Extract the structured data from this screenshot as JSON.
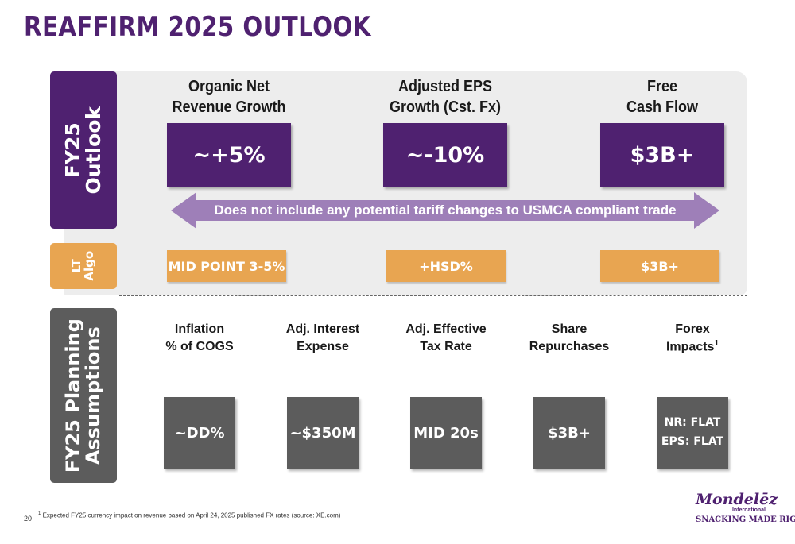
{
  "title": "REAFFIRM 2025 OUTLOOK",
  "sections": {
    "outlook_tab": "FY25\nOutlook",
    "lt_algo_tab": "LT\nAlgo",
    "planning_tab": "FY25 Planning\nAssumptions"
  },
  "outlook": {
    "metrics": [
      {
        "label": "Organic Net\nRevenue Growth",
        "value": "~+5%"
      },
      {
        "label": "Adjusted EPS\nGrowth (Cst. Fx)",
        "value": "~-10%"
      },
      {
        "label": "Free\nCash Flow",
        "value": "$3B+"
      }
    ],
    "arrow_note": "Does not include any potential tariff changes to USMCA compliant trade"
  },
  "lt_algo": {
    "values": [
      "MID POINT 3-5%",
      "+HSD%",
      "$3B+"
    ]
  },
  "planning": {
    "items": [
      {
        "label": "Inflation\n% of COGS",
        "value": "~DD%"
      },
      {
        "label": "Adj. Interest\nExpense",
        "value": "~$350M"
      },
      {
        "label": "Adj. Effective\nTax Rate",
        "value": "MID 20s"
      },
      {
        "label": "Share\nRepurchases",
        "value": "$3B+"
      },
      {
        "label": "Forex\nImpacts",
        "label_sup": "1",
        "value_lines": [
          "NR: FLAT",
          "EPS: FLAT"
        ]
      }
    ]
  },
  "footer": {
    "page_number": "20",
    "footnote_marker": "1",
    "footnote": "Expected FY25 currency impact on revenue based on April 24, 2025 published FX rates (source: XE.com)"
  },
  "logo": {
    "name": "Mondelēz",
    "sub": "International",
    "tagline": "SNACKING MADE RIGHT"
  },
  "colors": {
    "purple": "#4f2170",
    "light_purple": "#9e7fb8",
    "orange": "#e8a551",
    "gray": "#5c5c5c",
    "panel": "#ededed"
  }
}
